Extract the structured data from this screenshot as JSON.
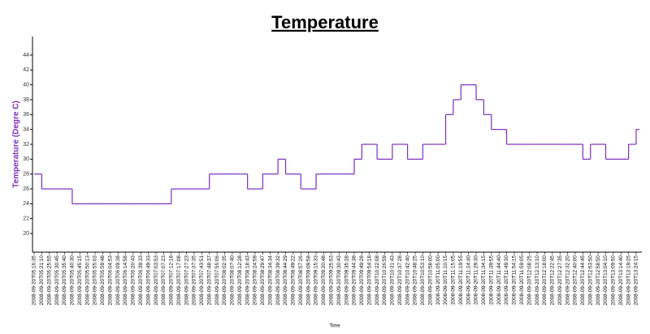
{
  "chart_data": {
    "type": "step-line",
    "title": "Temperature",
    "y_label": "Temperature  (Degre C)",
    "x_label": "Time",
    "categories": [
      "2008-09-20T05:16:35",
      "2008-09-20T05:21:10",
      "2008-09-20T05:25:55",
      "2008-09-20T05:30:45",
      "2008-09-20T05:35:40",
      "2008-09-20T05:40:30",
      "2008-09-20T05:45:15",
      "2008-09-20T05:50:13",
      "2008-09-20T05:55:03",
      "2008-09-20T05:59:48",
      "2008-09-20T06:04:53",
      "2008-09-20T06:09:38",
      "2008-09-20T06:14:58",
      "2008-09-20T06:20:43",
      "2008-09-20T06:39:33",
      "2008-09-20T06:49:33",
      "2008-09-20T07:03:53",
      "2008-09-20T07:07:23",
      "2008-09-20T07:12:18",
      "2008-09-20T07:17:08",
      "2008-09-20T07:27:23",
      "2008-09-20T07:37:35",
      "2008-09-20T07:43:51",
      "2008-09-20T07:48:37",
      "2008-09-20T07:55:06",
      "2008-09-20T08:02:35",
      "2008-09-20T08:07:40",
      "2008-09-20T08:12:28",
      "2008-09-20T08:18:43",
      "2008-09-20T08:24:59",
      "2008-09-20T08:29:47",
      "2008-09-20T08:34:34",
      "2008-09-20T08:39:32",
      "2008-09-20T08:44:29",
      "2008-09-20T08:49:22",
      "2008-09-20T08:57:26",
      "2008-09-20T09:09:58",
      "2008-09-20T09:15:33",
      "2008-09-20T09:20:48",
      "2008-09-20T09:25:53",
      "2008-09-20T09:30:43",
      "2008-09-20T09:35:28",
      "2008-09-20T09:44:38",
      "2008-09-20T09:49:28",
      "2008-09-20T09:54:18",
      "2008-09-20T10:22:08",
      "2008-09-20T10:26:59",
      "2008-09-20T10:31:43",
      "2008-09-20T10:37:28",
      "2008-09-20T10:42:40",
      "2008-09-20T10:48:25",
      "2008-09-20T10:53:10",
      "2008-09-20T10:58:00",
      "2008-09-20T11:05:00",
      "2008-09-20T11:10:15",
      "2008-09-20T11:15:05",
      "2008-09-20T11:19:55",
      "2008-09-20T11:24:40",
      "2008-09-20T11:29:30",
      "2008-09-20T11:34:15",
      "2008-09-20T11:39:55",
      "2008-09-20T11:44:40",
      "2008-09-20T11:49:30",
      "2008-09-20T11:54:15",
      "2008-09-20T11:59:05",
      "2008-09-20T12:08:25",
      "2008-09-20T12:13:10",
      "2008-09-20T12:18:00",
      "2008-09-20T12:22:45",
      "2008-09-20T12:27:35",
      "2008-09-20T12:32:20",
      "2008-09-20T12:40:00",
      "2008-09-20T12:44:45",
      "2008-09-20T12:53:50",
      "2008-09-20T12:58:50",
      "2008-09-20T13:04:10",
      "2008-09-20T13:09:50",
      "2008-09-20T13:14:40",
      "2008-09-20T13:19:25",
      "2008-09-20T13:24:15"
    ],
    "values": [
      28,
      26,
      26,
      26,
      26,
      24,
      24,
      24,
      24,
      24,
      24,
      24,
      24,
      24,
      24,
      24,
      24,
      24,
      26,
      26,
      26,
      26,
      26,
      28,
      28,
      28,
      28,
      28,
      26,
      26,
      28,
      28,
      30,
      28,
      28,
      26,
      26,
      28,
      28,
      28,
      28,
      28,
      30,
      32,
      32,
      30,
      30,
      32,
      32,
      30,
      30,
      32,
      32,
      32,
      36,
      38,
      40,
      40,
      38,
      36,
      34,
      34,
      32,
      32,
      32,
      32,
      32,
      32,
      32,
      32,
      32,
      32,
      30,
      32,
      32,
      30,
      30,
      30,
      32,
      34
    ],
    "color": "#7b2cbf",
    "ylim": [
      17.5,
      46.5
    ],
    "yticks": [
      20,
      22,
      24,
      26,
      28,
      30,
      32,
      34,
      36,
      38,
      40,
      42,
      44
    ]
  }
}
